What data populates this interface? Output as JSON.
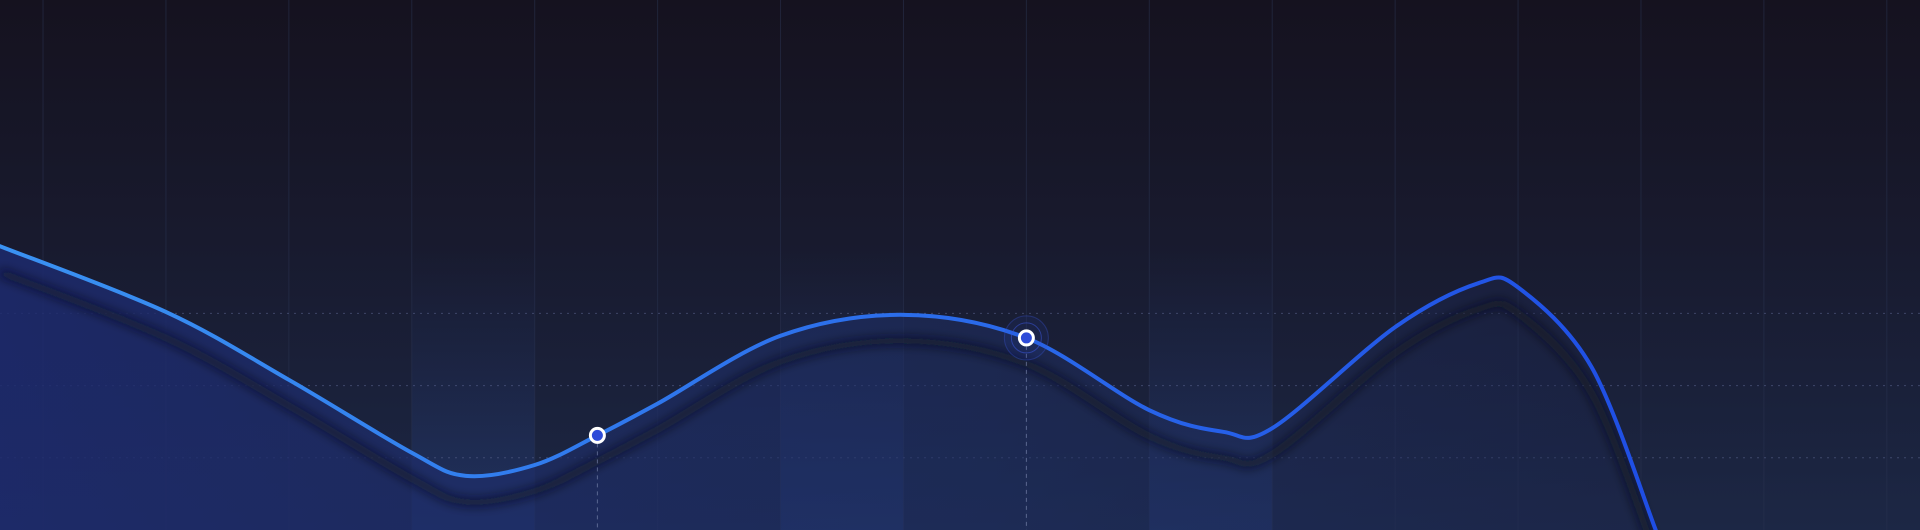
{
  "chart_data": {
    "type": "line",
    "x": [
      -0.35,
      1,
      2,
      3,
      3.44,
      4,
      4.51,
      5,
      6,
      7,
      8,
      9,
      9.6,
      10,
      11,
      11.68,
      12,
      12.6,
      13.12
    ],
    "series": [
      {
        "color": "#2f6fef",
        "values": [
          3.93,
          3.02,
          2.08,
          1.07,
          0.75,
          0.9,
          1.31,
          1.75,
          2.69,
          2.98,
          2.66,
          1.66,
          1.36,
          1.41,
          2.81,
          3.42,
          3.36,
          2.25,
          0
        ]
      }
    ],
    "markers": [
      6,
      10
    ],
    "xlim": [
      -0.35,
      15.27
    ],
    "ylim": [
      0,
      7.34
    ],
    "xticks": [
      0,
      1,
      2,
      3,
      4,
      5,
      6,
      7,
      8,
      9,
      10,
      11,
      12,
      13,
      14,
      15
    ],
    "yticks": [
      1,
      2,
      3
    ],
    "grid": true
  }
}
